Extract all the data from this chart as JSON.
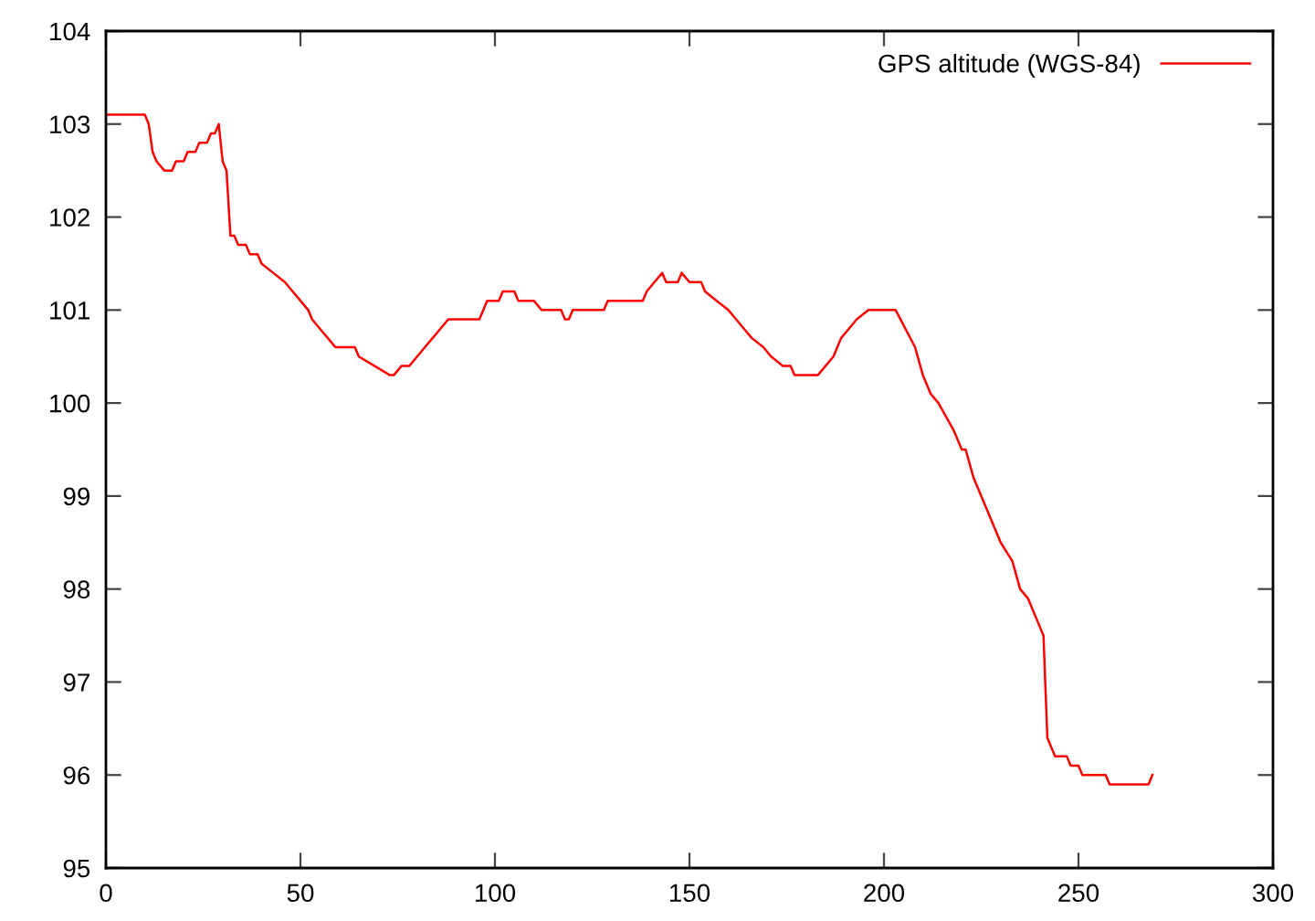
{
  "chart_data": {
    "type": "line",
    "xlim": [
      0,
      300
    ],
    "ylim": [
      95,
      104
    ],
    "xticks": [
      0,
      50,
      100,
      150,
      200,
      250,
      300
    ],
    "yticks": [
      95,
      96,
      97,
      98,
      99,
      100,
      101,
      102,
      103,
      104
    ],
    "grid": false,
    "legend": "top right",
    "marker": "none",
    "line_style": "solid",
    "series": [
      {
        "name": "GPS altitude (WGS-84)",
        "color": "#ff0000",
        "x": [
          0,
          10,
          11,
          12,
          13,
          15,
          17,
          18,
          20,
          21,
          23,
          24,
          26,
          27,
          28,
          29,
          30,
          31,
          32,
          33,
          34,
          36,
          37,
          39,
          40,
          43,
          46,
          48,
          50,
          52,
          53,
          55,
          57,
          59,
          64,
          65,
          69,
          73,
          74,
          76,
          78,
          80,
          82,
          84,
          86,
          88,
          96,
          98,
          101,
          102,
          105,
          106,
          110,
          112,
          117,
          118,
          119,
          120,
          128,
          129,
          138,
          139,
          141,
          143,
          144,
          147,
          148,
          150,
          153,
          154,
          157,
          160,
          162,
          164,
          166,
          169,
          171,
          174,
          176,
          177,
          183,
          185,
          187,
          189,
          191,
          193,
          196,
          203,
          208,
          210,
          212,
          214,
          218,
          220,
          221,
          223,
          230,
          233,
          235,
          237,
          240,
          241,
          242,
          243,
          244,
          247,
          248,
          250,
          251,
          257,
          258,
          268,
          269
        ],
        "values": [
          103.1,
          103.1,
          103.0,
          102.7,
          102.6,
          102.5,
          102.5,
          102.6,
          102.6,
          102.7,
          102.7,
          102.8,
          102.8,
          102.9,
          102.9,
          103.0,
          102.6,
          102.5,
          101.8,
          101.8,
          101.7,
          101.7,
          101.6,
          101.6,
          101.5,
          101.4,
          101.3,
          101.2,
          101.1,
          101.0,
          100.9,
          100.8,
          100.7,
          100.6,
          100.6,
          100.5,
          100.4,
          100.3,
          100.3,
          100.4,
          100.4,
          100.5,
          100.6,
          100.7,
          100.8,
          100.9,
          100.9,
          101.1,
          101.1,
          101.2,
          101.2,
          101.1,
          101.1,
          101.0,
          101.0,
          100.9,
          100.9,
          101.0,
          101.0,
          101.1,
          101.1,
          101.2,
          101.3,
          101.4,
          101.3,
          101.3,
          101.4,
          101.3,
          101.3,
          101.2,
          101.1,
          101.0,
          100.9,
          100.8,
          100.7,
          100.6,
          100.5,
          100.4,
          100.4,
          100.3,
          100.3,
          100.4,
          100.5,
          100.7,
          100.8,
          100.9,
          101.0,
          101.0,
          100.6,
          100.3,
          100.1,
          100.0,
          99.7,
          99.5,
          99.5,
          99.2,
          98.5,
          98.3,
          98.0,
          97.9,
          97.6,
          97.5,
          96.4,
          96.3,
          96.2,
          96.2,
          96.1,
          96.1,
          96.0,
          96.0,
          95.9,
          95.9,
          96.0
        ]
      }
    ]
  }
}
